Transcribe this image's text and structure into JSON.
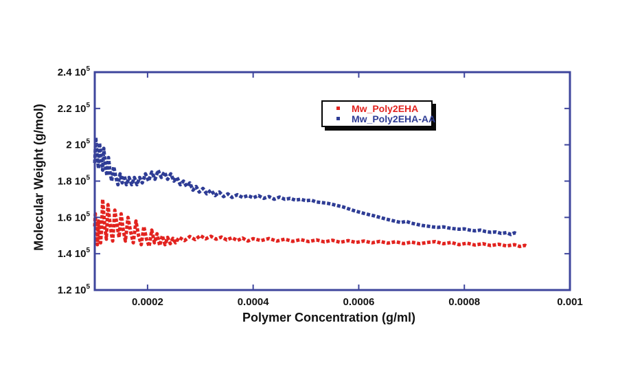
{
  "figure": {
    "background": "#ffffff",
    "text_color": "#111111"
  },
  "chart_data": {
    "type": "line",
    "title": "",
    "xlabel": "Polymer Concentration (g/ml)",
    "ylabel": "Molecular Weight (g/mol)",
    "xlim": [
      0.0001,
      0.001
    ],
    "ylim": [
      120000,
      240000
    ],
    "grid": false,
    "frame_color": "#3e459c",
    "tick_color": "#3e459c",
    "legend_position": "inside-top-center",
    "x_ticks": [
      {
        "v": 0.0002,
        "label": "0.0002",
        "mark": true
      },
      {
        "v": 0.0004,
        "label": "0.0004",
        "mark": true
      },
      {
        "v": 0.0006,
        "label": "0.0006",
        "mark": true
      },
      {
        "v": 0.0008,
        "label": "0.0008",
        "mark": true
      },
      {
        "v": 0.001,
        "label": "0.001",
        "mark": false
      }
    ],
    "y_ticks": [
      {
        "v": 240000,
        "base": "2.4 10",
        "sup": "5",
        "mark": false
      },
      {
        "v": 220000,
        "base": "2.2 10",
        "sup": "5",
        "mark": true
      },
      {
        "v": 200000,
        "base": "2 10",
        "sup": "5",
        "mark": true
      },
      {
        "v": 180000,
        "base": "1.8 10",
        "sup": "5",
        "mark": true
      },
      {
        "v": 160000,
        "base": "1.6 10",
        "sup": "5",
        "mark": true
      },
      {
        "v": 140000,
        "base": "1.4 10",
        "sup": "5",
        "mark": true
      },
      {
        "v": 120000,
        "base": "1.2 10",
        "sup": "5",
        "mark": false
      }
    ],
    "legend": {
      "items": [
        {
          "label": "Mw_Poly2EHA",
          "color": "#e2231f"
        },
        {
          "label": "Mw_Poly2EHA-AA",
          "color": "#2e3c95"
        }
      ]
    },
    "series": [
      {
        "name": "Mw_Poly2EHA",
        "color": "#e2231f",
        "dash": "5 2.5",
        "width": 5,
        "points": [
          [
            0.0001,
            155000
          ],
          [
            0.000101,
            162000
          ],
          [
            0.000103,
            150000
          ],
          [
            0.000105,
            145000
          ],
          [
            0.000107,
            158000
          ],
          [
            0.000109,
            151000
          ],
          [
            0.000111,
            146000
          ],
          [
            0.000113,
            154000
          ],
          [
            0.000115,
            170000
          ],
          [
            0.000117,
            162000
          ],
          [
            0.000119,
            155000
          ],
          [
            0.000122,
            148000
          ],
          [
            0.000125,
            167000
          ],
          [
            0.000128,
            159000
          ],
          [
            0.000131,
            152000
          ],
          [
            0.000134,
            147000
          ],
          [
            0.000138,
            164000
          ],
          [
            0.000142,
            156000
          ],
          [
            0.000146,
            149000
          ],
          [
            0.00015,
            162000
          ],
          [
            0.000154,
            153000
          ],
          [
            0.000158,
            147000
          ],
          [
            0.000163,
            160000
          ],
          [
            0.000168,
            152000
          ],
          [
            0.000173,
            146000
          ],
          [
            0.000178,
            158000
          ],
          [
            0.000183,
            150000
          ],
          [
            0.000188,
            145000
          ],
          [
            0.000193,
            155000
          ],
          [
            0.000198,
            148000
          ],
          [
            0.000203,
            144000
          ],
          [
            0.000208,
            153000
          ],
          [
            0.000213,
            146000
          ],
          [
            0.000218,
            151000
          ],
          [
            0.000223,
            144500
          ],
          [
            0.000228,
            150000
          ],
          [
            0.000233,
            145000
          ],
          [
            0.000238,
            149000
          ],
          [
            0.000243,
            145500
          ],
          [
            0.000248,
            148500
          ],
          [
            0.000253,
            146000
          ],
          [
            0.00026,
            149000
          ],
          [
            0.00027,
            147200
          ],
          [
            0.00028,
            149500
          ],
          [
            0.00029,
            147800
          ],
          [
            0.0003,
            150000
          ],
          [
            0.00031,
            148200
          ],
          [
            0.00032,
            149600
          ],
          [
            0.00033,
            148000
          ],
          [
            0.00034,
            149200
          ],
          [
            0.00035,
            147600
          ],
          [
            0.00036,
            148800
          ],
          [
            0.00037,
            147300
          ],
          [
            0.00038,
            148600
          ],
          [
            0.00039,
            147000
          ],
          [
            0.0004,
            148300
          ],
          [
            0.000415,
            147200
          ],
          [
            0.00043,
            148400
          ],
          [
            0.000445,
            147000
          ],
          [
            0.00046,
            148000
          ],
          [
            0.000475,
            146800
          ],
          [
            0.00049,
            147800
          ],
          [
            0.000505,
            146700
          ],
          [
            0.00052,
            147600
          ],
          [
            0.000535,
            146500
          ],
          [
            0.00055,
            147400
          ],
          [
            0.000565,
            146300
          ],
          [
            0.00058,
            147200
          ],
          [
            0.000595,
            146200
          ],
          [
            0.00061,
            147000
          ],
          [
            0.000625,
            146000
          ],
          [
            0.00064,
            146800
          ],
          [
            0.000655,
            145800
          ],
          [
            0.00067,
            146600
          ],
          [
            0.000685,
            145600
          ],
          [
            0.0007,
            146400
          ],
          [
            0.000715,
            145500
          ],
          [
            0.00073,
            146200
          ],
          [
            0.000745,
            146700
          ],
          [
            0.00076,
            145500
          ],
          [
            0.000775,
            146200
          ],
          [
            0.00079,
            145000
          ],
          [
            0.000805,
            145800
          ],
          [
            0.00082,
            144800
          ],
          [
            0.000835,
            145500
          ],
          [
            0.00085,
            144500
          ],
          [
            0.000865,
            145200
          ],
          [
            0.00088,
            144300
          ],
          [
            0.000895,
            145000
          ],
          [
            0.000905,
            144000
          ],
          [
            0.000915,
            144600
          ],
          [
            0.00092,
            144000
          ]
        ]
      },
      {
        "name": "Mw_Poly2EHA-AA",
        "color": "#2e3c95",
        "dash": "5 2.5",
        "width": 5,
        "points": [
          [
            0.0001,
            190000
          ],
          [
            0.000102,
            204000
          ],
          [
            0.000105,
            193000
          ],
          [
            0.000107,
            187000
          ],
          [
            0.000109,
            201000
          ],
          [
            0.000112,
            193000
          ],
          [
            0.000115,
            186000
          ],
          [
            0.000117,
            198000
          ],
          [
            0.00012,
            189000
          ],
          [
            0.000123,
            183000
          ],
          [
            0.000126,
            193000
          ],
          [
            0.000129,
            185000
          ],
          [
            0.000132,
            180000
          ],
          [
            0.000136,
            188000
          ],
          [
            0.00014,
            182000
          ],
          [
            0.000144,
            178000
          ],
          [
            0.000148,
            184000
          ],
          [
            0.000152,
            179000
          ],
          [
            0.000156,
            183000
          ],
          [
            0.00016,
            178000
          ],
          [
            0.000165,
            182000
          ],
          [
            0.00017,
            178000
          ],
          [
            0.000175,
            182000
          ],
          [
            0.00018,
            178000
          ],
          [
            0.000185,
            182000
          ],
          [
            0.00019,
            179000
          ],
          [
            0.000196,
            184000
          ],
          [
            0.000202,
            180000
          ],
          [
            0.000208,
            185000
          ],
          [
            0.000214,
            181000
          ],
          [
            0.00022,
            186000
          ],
          [
            0.000226,
            182000
          ],
          [
            0.000232,
            185000
          ],
          [
            0.000238,
            181000
          ],
          [
            0.000244,
            184000
          ],
          [
            0.00025,
            180000
          ],
          [
            0.000256,
            182000
          ],
          [
            0.000262,
            178000
          ],
          [
            0.000268,
            180000
          ],
          [
            0.000274,
            177000
          ],
          [
            0.00028,
            179000
          ],
          [
            0.000286,
            175000
          ],
          [
            0.000292,
            177000
          ],
          [
            0.000298,
            174000
          ],
          [
            0.000305,
            176000
          ],
          [
            0.000312,
            173000
          ],
          [
            0.00032,
            175000
          ],
          [
            0.000328,
            172000
          ],
          [
            0.000336,
            174000
          ],
          [
            0.000344,
            171500
          ],
          [
            0.000352,
            173000
          ],
          [
            0.00036,
            171000
          ],
          [
            0.00037,
            172500
          ],
          [
            0.00038,
            171000
          ],
          [
            0.00039,
            172000
          ],
          [
            0.0004,
            170800
          ],
          [
            0.00041,
            172000
          ],
          [
            0.00042,
            170500
          ],
          [
            0.00043,
            171500
          ],
          [
            0.00044,
            170000
          ],
          [
            0.00045,
            171200
          ],
          [
            0.00046,
            170000
          ],
          [
            0.00047,
            170500
          ],
          [
            0.00048,
            169500
          ],
          [
            0.00049,
            170000
          ],
          [
            0.0005,
            169200
          ],
          [
            0.00051,
            169500
          ],
          [
            0.00052,
            168500
          ],
          [
            0.00053,
            168200
          ],
          [
            0.00054,
            167800
          ],
          [
            0.00055,
            167200
          ],
          [
            0.00056,
            166500
          ],
          [
            0.00057,
            165800
          ],
          [
            0.00058,
            164800
          ],
          [
            0.00059,
            163800
          ],
          [
            0.0006,
            163000
          ],
          [
            0.00061,
            162200
          ],
          [
            0.00062,
            161500
          ],
          [
            0.00063,
            160800
          ],
          [
            0.00064,
            160000
          ],
          [
            0.00065,
            159200
          ],
          [
            0.00066,
            158500
          ],
          [
            0.00067,
            157800
          ],
          [
            0.00068,
            157200
          ],
          [
            0.00069,
            157800
          ],
          [
            0.0007,
            156800
          ],
          [
            0.00071,
            156200
          ],
          [
            0.00072,
            155600
          ],
          [
            0.00073,
            155200
          ],
          [
            0.00074,
            154800
          ],
          [
            0.00075,
            154500
          ],
          [
            0.00076,
            154800
          ],
          [
            0.00077,
            154200
          ],
          [
            0.00078,
            153800
          ],
          [
            0.00079,
            153500
          ],
          [
            0.0008,
            153700
          ],
          [
            0.00081,
            153000
          ],
          [
            0.00082,
            152600
          ],
          [
            0.00083,
            153000
          ],
          [
            0.00084,
            152200
          ],
          [
            0.00085,
            151800
          ],
          [
            0.00086,
            152000
          ],
          [
            0.00087,
            151200
          ],
          [
            0.00088,
            151600
          ],
          [
            0.000888,
            150600
          ],
          [
            0.000895,
            151500
          ],
          [
            0.0009,
            151000
          ]
        ]
      }
    ]
  }
}
